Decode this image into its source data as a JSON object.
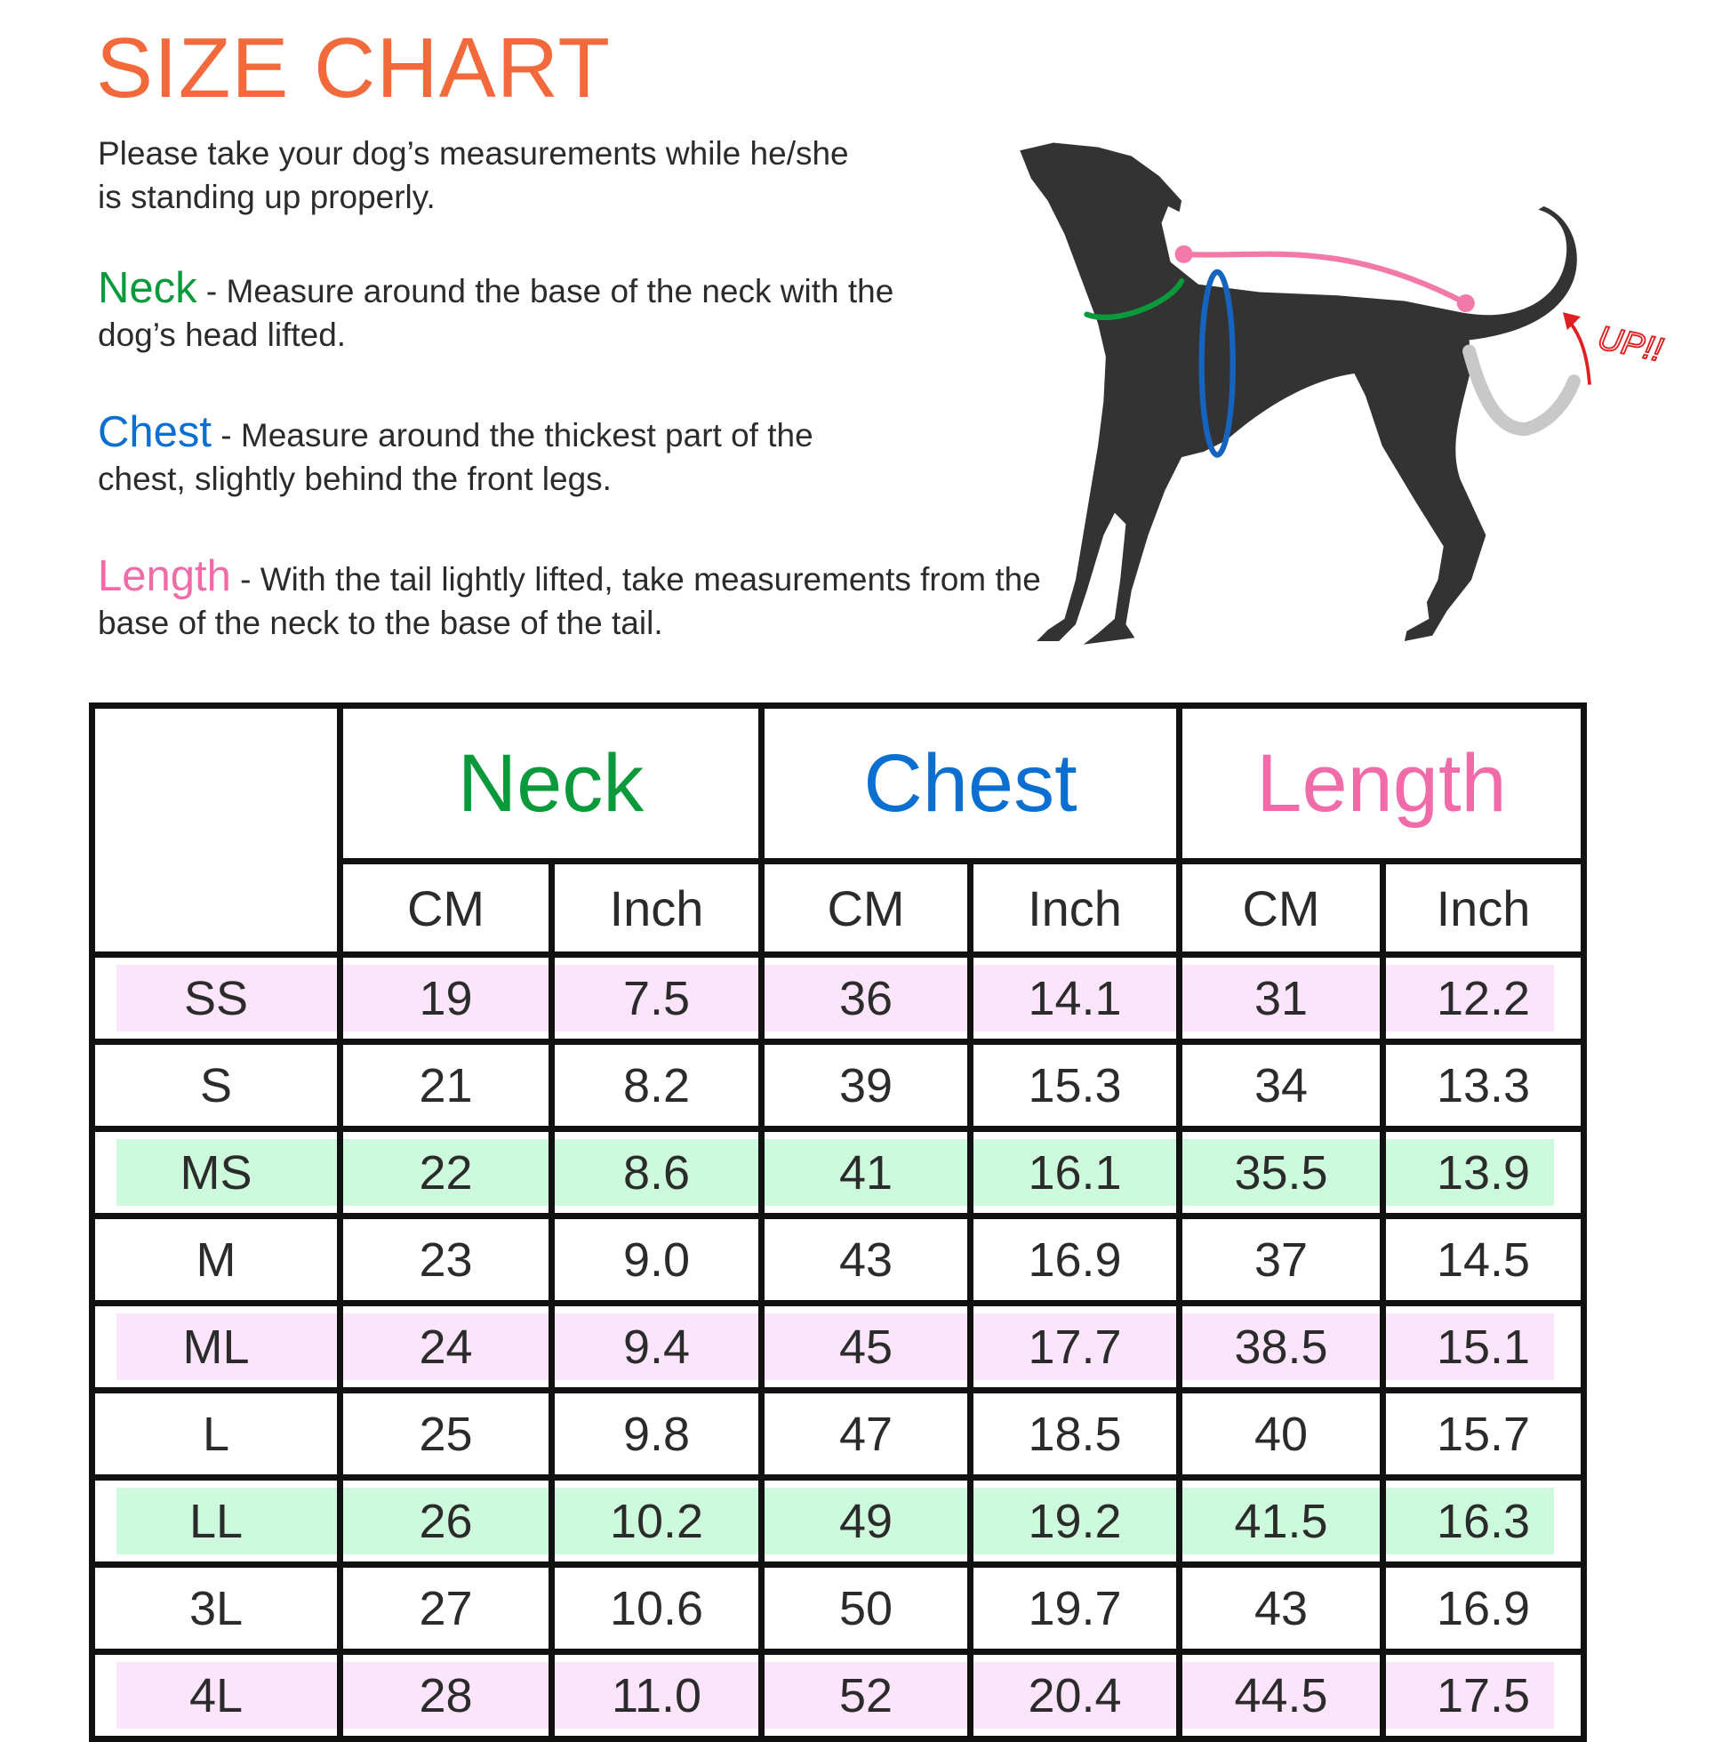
{
  "title": "SIZE CHART",
  "intro": "Please take your dog’s measurements while he/she is standing up properly.",
  "instructions": {
    "neck": {
      "term": "Neck",
      "text": " - Measure around the base of the neck with the dog’s head lifted.",
      "color": "#0a9a3c"
    },
    "chest": {
      "term": "Chest",
      "text": " - Measure around the thickest part of the chest, slightly behind the front legs.",
      "color": "#0a6fd0"
    },
    "length": {
      "term": "Length",
      "text": " - With the tail lightly lifted, take measurements from the base of the neck to the base of the tail.",
      "color": "#f06ba8"
    }
  },
  "illustration": {
    "label": "UP!!",
    "neck_color": "#0a9a3c",
    "chest_color": "#1565c0",
    "length_color": "#f37aa8",
    "arrow_color": "#e02020"
  },
  "table": {
    "groups": [
      {
        "label": "Neck",
        "color": "#0a9a3c"
      },
      {
        "label": "Chest",
        "color": "#0a6fd0"
      },
      {
        "label": "Length",
        "color": "#f06ba8"
      }
    ],
    "units": [
      "CM",
      "Inch",
      "CM",
      "Inch",
      "CM",
      "Inch"
    ],
    "highlight_colors": {
      "pink": "#fce4fa",
      "green": "#cdfadc"
    },
    "rows": [
      {
        "size": "SS",
        "values": [
          "19",
          "7.5",
          "36",
          "14.1",
          "31",
          "12.2"
        ],
        "highlight": "pink"
      },
      {
        "size": "S",
        "values": [
          "21",
          "8.2",
          "39",
          "15.3",
          "34",
          "13.3"
        ],
        "highlight": null
      },
      {
        "size": "MS",
        "values": [
          "22",
          "8.6",
          "41",
          "16.1",
          "35.5",
          "13.9"
        ],
        "highlight": "green"
      },
      {
        "size": "M",
        "values": [
          "23",
          "9.0",
          "43",
          "16.9",
          "37",
          "14.5"
        ],
        "highlight": null
      },
      {
        "size": "ML",
        "values": [
          "24",
          "9.4",
          "45",
          "17.7",
          "38.5",
          "15.1"
        ],
        "highlight": "pink"
      },
      {
        "size": "L",
        "values": [
          "25",
          "9.8",
          "47",
          "18.5",
          "40",
          "15.7"
        ],
        "highlight": null
      },
      {
        "size": "LL",
        "values": [
          "26",
          "10.2",
          "49",
          "19.2",
          "41.5",
          "16.3"
        ],
        "highlight": "green"
      },
      {
        "size": "3L",
        "values": [
          "27",
          "10.6",
          "50",
          "19.7",
          "43",
          "16.9"
        ],
        "highlight": null
      },
      {
        "size": "4L",
        "values": [
          "28",
          "11.0",
          "52",
          "20.4",
          "44.5",
          "17.5"
        ],
        "highlight": "pink"
      }
    ]
  }
}
